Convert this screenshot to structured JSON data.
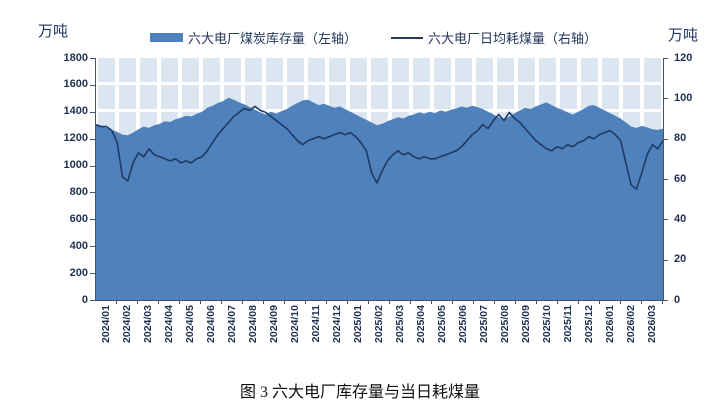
{
  "caption": "图 3 六大电厂库存量与当日耗煤量",
  "legend": {
    "items": [
      {
        "label": "六大电厂煤炭库存量（左轴）",
        "type": "bar"
      },
      {
        "label": "六大电厂日均耗煤量（右轴）",
        "type": "line"
      }
    ]
  },
  "colors": {
    "bar": "#4f81bd",
    "line": "#1f3a63",
    "plot_tile": "#dce6f1",
    "axis": "#44546a",
    "text": "#1f3864"
  },
  "chart_data": {
    "type": "bar",
    "title": "",
    "xlabel": "",
    "left_axis_unit": "万吨",
    "right_axis_unit": "万吨",
    "left_axis": {
      "max": 1800,
      "min": 0,
      "ticks": [
        1800,
        1600,
        1400,
        1200,
        1000,
        800,
        600,
        400,
        200,
        0
      ]
    },
    "right_axis": {
      "max": 120,
      "min": 0,
      "ticks": [
        120,
        100,
        80,
        60,
        40,
        20,
        0
      ]
    },
    "grid": "white-gaps-on-shaded-plot",
    "legend_position": "top",
    "months": [
      "2024/01",
      "2024/02",
      "2024/03",
      "2024/04",
      "2024/05",
      "2024/06",
      "2024/07",
      "2024/08",
      "2024/09",
      "2024/10",
      "2024/11",
      "2024/12",
      "2025/01",
      "2025/02",
      "2025/03",
      "2025/04",
      "2025/05",
      "2025/06",
      "2025/07",
      "2025/08",
      "2025/09",
      "2025/10",
      "2025/11",
      "2025/12",
      "2026/01",
      "2026/02",
      "2026/03"
    ],
    "sampling": "weekly, 4 points per month",
    "series": [
      {
        "name": "六大电厂煤炭库存量（左轴）",
        "axis": "left",
        "type": "bar",
        "values": [
          1300,
          1290,
          1280,
          1265,
          1250,
          1230,
          1225,
          1245,
          1270,
          1290,
          1280,
          1300,
          1310,
          1330,
          1325,
          1345,
          1355,
          1370,
          1365,
          1385,
          1400,
          1430,
          1445,
          1465,
          1480,
          1505,
          1490,
          1470,
          1455,
          1435,
          1415,
          1395,
          1380,
          1400,
          1385,
          1405,
          1420,
          1445,
          1465,
          1485,
          1490,
          1470,
          1450,
          1460,
          1445,
          1430,
          1440,
          1420,
          1400,
          1380,
          1360,
          1340,
          1320,
          1300,
          1310,
          1330,
          1345,
          1360,
          1350,
          1370,
          1380,
          1395,
          1385,
          1400,
          1390,
          1410,
          1400,
          1415,
          1425,
          1440,
          1430,
          1445,
          1435,
          1420,
          1400,
          1380,
          1360,
          1340,
          1365,
          1390,
          1410,
          1430,
          1420,
          1440,
          1455,
          1470,
          1450,
          1430,
          1415,
          1395,
          1380,
          1400,
          1420,
          1445,
          1450,
          1430,
          1410,
          1390,
          1370,
          1350,
          1320,
          1290,
          1280,
          1295,
          1285,
          1270,
          1265,
          1275
        ]
      },
      {
        "name": "六大电厂日均耗煤量（右轴）",
        "axis": "right",
        "type": "line",
        "values": [
          87,
          86,
          86,
          84,
          78,
          61,
          59,
          68,
          73,
          71,
          75,
          72,
          71,
          70,
          69,
          70,
          68,
          69,
          68,
          70,
          71,
          74,
          78,
          82,
          85,
          88,
          91,
          93,
          95,
          94,
          96,
          94,
          93,
          91,
          89,
          87,
          85,
          82,
          79,
          77,
          79,
          80,
          81,
          80,
          81,
          82,
          83,
          82,
          83,
          81,
          78,
          74,
          63,
          58,
          64,
          69,
          72,
          74,
          72,
          73,
          71,
          70,
          71,
          70,
          70,
          71,
          72,
          73,
          74,
          76,
          79,
          82,
          84,
          87,
          85,
          89,
          92,
          89,
          93,
          90,
          88,
          85,
          82,
          79,
          77,
          75,
          74,
          76,
          75,
          77,
          76,
          78,
          79,
          81,
          80,
          82,
          83,
          84,
          82,
          79,
          68,
          57,
          55,
          63,
          72,
          77,
          75,
          79
        ]
      }
    ]
  }
}
